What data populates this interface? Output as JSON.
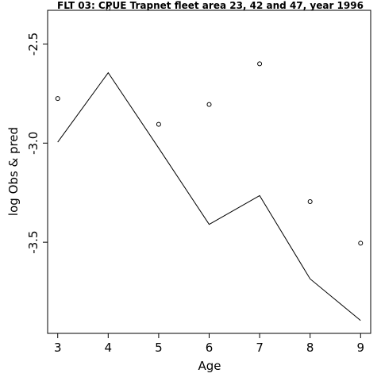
{
  "chart_data": {
    "type": "line",
    "title": "FLT 03: CPUE Trapnet fleet area 23, 42 and 47, year 1996",
    "xlabel": "Age",
    "ylabel": "log Obs & pred",
    "xlim": [
      2.8,
      9.2
    ],
    "ylim": [
      -3.96,
      -2.33
    ],
    "x_ticks": [
      3,
      4,
      5,
      6,
      7,
      8,
      9
    ],
    "x_tick_labels": [
      "3",
      "4",
      "5",
      "6",
      "7",
      "8",
      "9"
    ],
    "y_ticks": [
      -2.5,
      -3.0,
      -3.5
    ],
    "y_tick_labels": [
      "-2.5",
      "-3.0",
      "-3.5"
    ],
    "grid": false,
    "series": [
      {
        "style": "line",
        "x": [
          3,
          4,
          5,
          6,
          7,
          8,
          9
        ],
        "y": [
          -2.995,
          -2.645,
          -3.025,
          -3.41,
          -3.265,
          -3.685,
          -3.895
        ]
      },
      {
        "style": "points",
        "x": [
          3,
          4,
          5,
          6,
          7,
          8,
          9
        ],
        "y": [
          -2.775,
          -2.32,
          -2.905,
          -2.805,
          -2.6,
          -3.295,
          -3.505
        ]
      }
    ]
  }
}
